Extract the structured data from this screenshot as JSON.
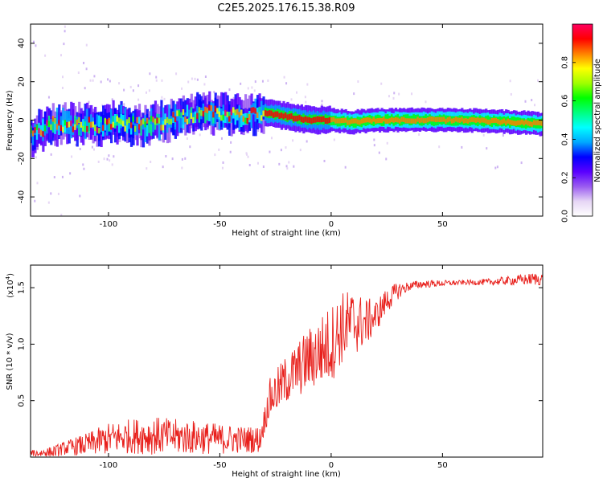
{
  "title": "C2E5.2025.176.15.38.R09",
  "chart_data": [
    {
      "type": "heatmap",
      "xlabel": "Height of straight line (km)",
      "ylabel": "Frequency (Hz)",
      "xlim": [
        -135,
        95
      ],
      "ylim": [
        -50,
        50
      ],
      "x_ticks": [
        -100,
        -50,
        0,
        50
      ],
      "x_tick_labels": [
        "-100",
        "-50",
        "0",
        "50"
      ],
      "y_ticks": [
        -40,
        -20,
        0,
        20,
        40
      ],
      "y_tick_labels": [
        "-40",
        "-20",
        "0",
        "20",
        "40"
      ],
      "ridge": {
        "x": [
          -135,
          -125,
          -115,
          -105,
          -95,
          -85,
          -75,
          -65,
          -55,
          -45,
          -38,
          -33,
          -25,
          -20,
          -10,
          0,
          10,
          20,
          40,
          60,
          80,
          95
        ],
        "y": [
          -8,
          -2,
          -2,
          -3,
          -1,
          -3,
          -1,
          2,
          4,
          3,
          2,
          4,
          3,
          2,
          0,
          0,
          -1,
          0,
          0,
          0,
          -1,
          -2
        ]
      },
      "colorbar": {
        "label": "Normalized spectral amplitude",
        "range": [
          0,
          1
        ],
        "ticks": [
          0.0,
          0.2,
          0.4,
          0.6,
          0.8
        ],
        "tick_labels": [
          "0.0",
          "0.2",
          "0.4",
          "0.6",
          "0.8"
        ],
        "colormap": [
          "#ffffff",
          "#e6d6f5",
          "#9a5cf0",
          "#5a00ff",
          "#0000ff",
          "#00a8ff",
          "#00ffff",
          "#00ff80",
          "#00ff00",
          "#a0ff00",
          "#ffff00",
          "#ff8000",
          "#ff0000",
          "#ff0060"
        ]
      }
    },
    {
      "type": "line",
      "xlabel": "Height of straight line (km)",
      "ylabel": "SNR (10 * v/v)",
      "y_scale_note": "(x10",
      "y_scale_exp": "4",
      "xlim": [
        -135,
        95
      ],
      "ylim": [
        0,
        1.7
      ],
      "x_ticks": [
        -100,
        -50,
        0,
        50
      ],
      "x_tick_labels": [
        "-100",
        "-50",
        "0",
        "50"
      ],
      "y_ticks": [
        0.5,
        1.0,
        1.5
      ],
      "y_tick_labels": [
        "0.5",
        "1.0",
        "1.5"
      ],
      "line_color": "#e8201c",
      "envelope": {
        "x": [
          -135,
          -125,
          -120,
          -110,
          -100,
          -90,
          -80,
          -70,
          -60,
          -50,
          -40,
          -32,
          -28,
          -20,
          -10,
          0,
          5,
          10,
          15,
          20,
          25,
          30,
          35,
          40,
          50,
          60,
          70,
          80,
          90,
          95
        ],
        "y": [
          0.02,
          0.03,
          0.06,
          0.08,
          0.12,
          0.14,
          0.14,
          0.13,
          0.13,
          0.12,
          0.12,
          0.12,
          0.45,
          0.62,
          0.78,
          0.9,
          1.05,
          1.1,
          1.12,
          1.2,
          1.35,
          1.45,
          1.5,
          1.52,
          1.53,
          1.54,
          1.54,
          1.55,
          1.56,
          1.56
        ]
      },
      "noise_amplitude": {
        "x": [
          -135,
          -120,
          -100,
          -80,
          -60,
          -40,
          -30,
          -28,
          -15,
          0,
          10,
          20,
          35,
          60,
          80,
          95
        ],
        "y": [
          0.03,
          0.06,
          0.14,
          0.17,
          0.15,
          0.12,
          0.12,
          0.18,
          0.25,
          0.35,
          0.3,
          0.15,
          0.04,
          0.02,
          0.04,
          0.06
        ]
      }
    }
  ]
}
